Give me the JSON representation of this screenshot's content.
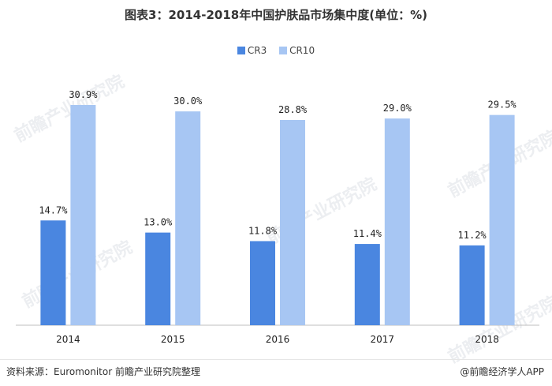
{
  "title": "图表3：2014-2018年中国护肤品市场集中度(单位：%)",
  "legend": [
    {
      "name": "CR3",
      "color": "#4a86e0"
    },
    {
      "name": "CR10",
      "color": "#a7c6f3"
    }
  ],
  "footer": {
    "source": "资料来源：Euromonitor 前瞻产业研究院整理",
    "brand": "@前瞻经济学人APP"
  },
  "watermark": "前瞻产业研究院",
  "chart_data": {
    "type": "bar",
    "categories": [
      "2014",
      "2015",
      "2016",
      "2017",
      "2018"
    ],
    "series": [
      {
        "name": "CR3",
        "values": [
          14.7,
          13.0,
          11.8,
          11.4,
          11.2
        ],
        "labels": [
          "14.7%",
          "13.0%",
          "11.8%",
          "11.4%",
          "11.2%"
        ],
        "color": "#4a86e0"
      },
      {
        "name": "CR10",
        "values": [
          30.9,
          30.0,
          28.8,
          29.0,
          29.5
        ],
        "labels": [
          "30.9%",
          "30.0%",
          "28.8%",
          "29.0%",
          "29.5%"
        ],
        "color": "#a7c6f3"
      }
    ],
    "title": "图表3：2014-2018年中国护肤品市场集中度(单位：%)",
    "xlabel": "",
    "ylabel": "",
    "ylim": [
      0,
      35
    ],
    "grid": false,
    "legend_position": "top-center"
  }
}
